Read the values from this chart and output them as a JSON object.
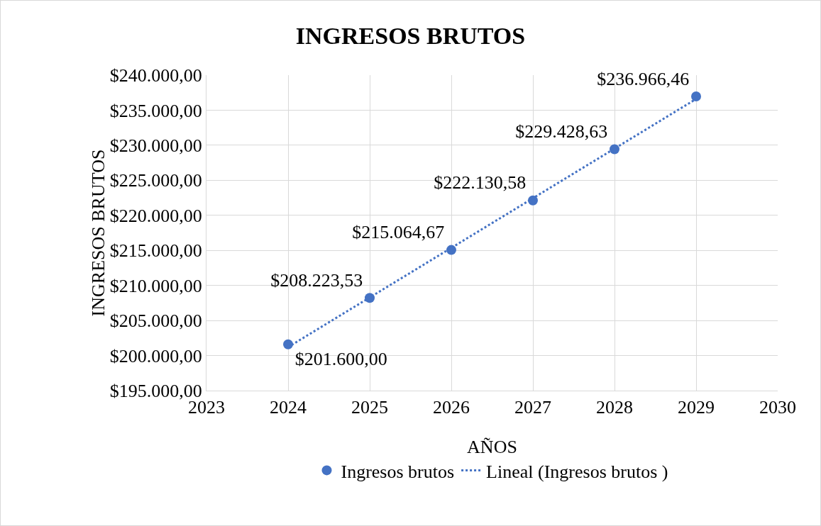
{
  "chart_data": {
    "type": "scatter",
    "title": "INGRESOS BRUTOS",
    "xlabel": "AÑOS",
    "ylabel": "INGRESOS BRUTOS",
    "x": [
      2024,
      2025,
      2026,
      2027,
      2028,
      2029
    ],
    "series": [
      {
        "name": "Ingresos brutos",
        "color": "#4472c4",
        "marker": "circle",
        "values": [
          201600,
          208223.53,
          215064.67,
          222130.58,
          229428.63,
          236966.46
        ],
        "value_labels": [
          "$201.600,00",
          "$208.223,53",
          "$215.064,67",
          "$222.130,58",
          "$229.428,63",
          "$236.966,46"
        ]
      },
      {
        "name": "Lineal (Ingresos brutos )",
        "type": "line",
        "color": "#4472c4",
        "marker": "none",
        "line_style": "dotted",
        "x": [
          2024,
          2029
        ],
        "values": [
          201200,
          236600
        ]
      }
    ],
    "xlim": [
      2023,
      2030
    ],
    "xticks": [
      2023,
      2024,
      2025,
      2026,
      2027,
      2028,
      2029,
      2030
    ],
    "ylim": [
      195000,
      240000
    ],
    "yticks": [
      {
        "value": 195000,
        "label": "$195.000,00"
      },
      {
        "value": 200000,
        "label": "$200.000,00"
      },
      {
        "value": 205000,
        "label": "$205.000,00"
      },
      {
        "value": 210000,
        "label": "$210.000,00"
      },
      {
        "value": 215000,
        "label": "$215.000,00"
      },
      {
        "value": 220000,
        "label": "$220.000,00"
      },
      {
        "value": 225000,
        "label": "$225.000,00"
      },
      {
        "value": 230000,
        "label": "$230.000,00"
      },
      {
        "value": 235000,
        "label": "$235.000,00"
      },
      {
        "value": 240000,
        "label": "$240.000,00"
      }
    ],
    "grid": true,
    "legend": "bottom"
  }
}
